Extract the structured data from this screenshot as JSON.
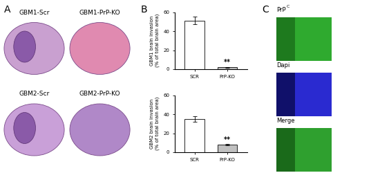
{
  "panel_labels": [
    "A",
    "B",
    "C"
  ],
  "panel_a": {
    "captions": [
      "GBM1-Scr",
      "GBM1-PrP-KO",
      "GBM2-Scr",
      "GBM2-PrP-KO"
    ]
  },
  "chart_data": [
    {
      "type": "bar",
      "categories": [
        "SCR",
        "PrP-KO"
      ],
      "values": [
        51,
        2
      ],
      "errors": [
        4,
        0.5
      ],
      "colors": [
        "#ffffff",
        "#c0c0c0"
      ],
      "ylabel": "GBM1 brain invasion\n(% of total brain area)",
      "ylim": [
        0,
        60
      ],
      "yticks": [
        0,
        20,
        40,
        60
      ],
      "annotations": [
        {
          "category": "PrP-KO",
          "text": "**"
        }
      ]
    },
    {
      "type": "bar",
      "categories": [
        "SCR",
        "PrP-KO"
      ],
      "values": [
        35,
        8
      ],
      "errors": [
        3,
        0.8
      ],
      "colors": [
        "#ffffff",
        "#c0c0c0"
      ],
      "ylabel": "GBM2 brain invasion\n(% of total brain area)",
      "ylim": [
        0,
        60
      ],
      "yticks": [
        0,
        20,
        40,
        60
      ],
      "annotations": [
        {
          "category": "PrP-KO",
          "text": "**"
        }
      ]
    }
  ],
  "panel_c": {
    "channels": [
      {
        "text": "PrP",
        "superscript": "C"
      },
      {
        "text": "Dapi"
      },
      {
        "text": "Merge"
      }
    ]
  }
}
